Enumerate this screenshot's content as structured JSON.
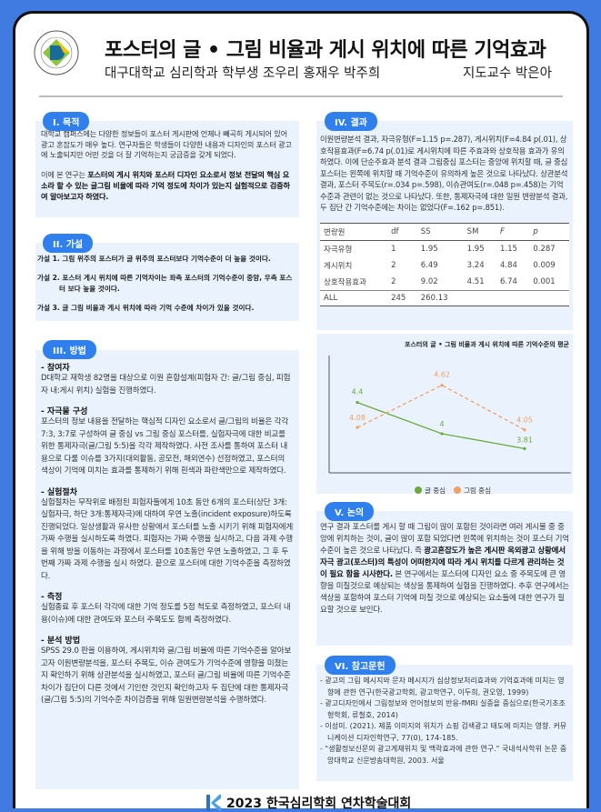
{
  "header": {
    "title": "포스터의 글 • 그림 비율과 게시 위치에 따른 기억효과",
    "authors": "대구대학교 심리학과 학부생 조우리 홍재우 박주희",
    "advisor": "지도교수 박은아",
    "logo_text": "DAEGU UNIVERSITY 1956 대구대학교"
  },
  "purpose": {
    "label": "I. 목적",
    "p1": "대학교 캠퍼스에는 다양한 정보들이 포스터 게시판에 언제나 빼곡히 게시되어 있어 광고 혼잡도가 매우 높다. 연구자들은 학생들이 다양한 내용과 디자인의 포스터 광고에 노출되지만 어떤 것을 더 잘 기억하는지 궁금증을 갖게 되었다.",
    "p2_pre": "이에 본 연구는 ",
    "p2_bold": "포스터의 게시 위치와 포스터 디자인 요소로서 정보 전달의 핵심 요소라 할 수 있는 글그림 비율에 따라 기억 정도에 차이가 있는지 실험적으로 검증하여 알아보고자 하였다."
  },
  "hypothesis": {
    "label": "II. 가설",
    "items": [
      "가설 1. 그림 위주의 포스터가 글 위주의 포스터보다 기억수준이 더 높을 것이다.",
      "가설 2. 포스터 게시 위치에 따른 기억차이는 좌측 포스터의 기억수준이 중앙, 우측 포스터 보다 높을 것이다.",
      "가설 3. 글 그림 비율과 게시 위치에 따라 기억 수준에 차이가 있을 것이다."
    ]
  },
  "method": {
    "label": "III. 방법",
    "sections": [
      {
        "title": "- 참여자",
        "text": "D대학교 재학생 82명을 대상으로 이원 혼합설계(피험자 간: 글/그림 중심, 피험자 내:게시 위치) 실험을 진행하였다."
      },
      {
        "title": "- 자극물 구성",
        "text": "포스터의 정보 내용을 전달하는 핵심적 디자인 요소로서 글/그림의 비율은 각각 7:3, 3:7로 구성하여 글 중심 vs 그림 중심 포스터를, 실험자극에 대한 비교를 위한 통제자극(글/그림 5:5)을 각각 제작하였다. 사전 조사를 통하여 포스터 내용으로 다룰 이슈를 3가지(대외활동, 공모전, 해외연수) 선정하였고, 포스터의 색상이 기억에 미치는 효과를 통제하기 위해 흰색과 파란색만으로 제작하였다."
      },
      {
        "title": "- 실험절차",
        "text": "실험절차는 무작위로 배정된 피험자들에게 10초 동안 6개의 포스터(상단 3개: 실험자극, 하단 3개:통제자극)에 대하여 우연 노출(incident exposure)하도록 진행되었다. 일상생활과 유사한 상황에서 포스터를 노출 시키기 위해 피험자에게 가짜 수행을 실시하도록 하였다. 피험자는 가짜 수행을 실시하고, 다음 과제 수행을 위해 방을 이동하는 과정에서 포스터를 10초동안 우연 노출하였고, 그 후 두 번째 가짜 과제 수행을 실시 하였다. 끝으로 포스터에 대한 기억수준을 측정하였다."
      },
      {
        "title": "- 측정",
        "text": "실험종료 후 포스터 각각에 대한 기억 정도를 5점 척도로 측정하였고, 포스터 내용(이슈)에 대한 관여도와 포스터 주목도도 함께 측정하였다."
      },
      {
        "title": "- 분석 방법",
        "text": "SPSS 29.0 판을 이용하여, 게시위치와 글/그림 비율에 따른 기억수준을 알아보고자 이원변량분석을, 포스터 주목도, 이슈 관여도가 기억수준에 영향을 미쳤는지 확인하기 위해 상관분석을 실시하였고, 포스터 글/그림 비율에 따른 기억수준 차이가 집단이 다른 것에서 기인한 것인지 확인하고자 두 집단에 대한 통제자극(글/그림 5:5)의 기억수준 차이검증을 위해 일원변량분석을 수행하였다."
      }
    ]
  },
  "results": {
    "label": "IV. 결과",
    "text": "이원변량분석 결과, 자극유형(F=1.15 p=.287), 게시위치(F=4.84 p(.01), 상호작용효과(F=6.74 p(.01)로 게시위치에 따른 주효과와 상호작용 효과가 유의하였다. 이에 단순주효과 분석 결과 그림중심 포스터는 중앙에 위치할 때, 글 중심 포스터는 왼쪽에 위치할 때 기억수준이 유의하게 높은 것으로 나타났다. 상관분석 결과, 포스터 주목도(r=.034 p=.598), 이슈관여도(r=.048 p=.458)는 기억수준과 관련이 없는 것으로 나타났다. 또한, 통제자극에 대한 일원 변량분석 결과, 두 집단 간 기억수준에는 차이는 없었다(F=.162 p=.851).",
    "table": {
      "headers": [
        "변량원",
        "df",
        "SS",
        "SM",
        "F",
        "p"
      ],
      "rows": [
        [
          "자극유형",
          "1",
          "1.95",
          "1.95",
          "1.15",
          "0.287"
        ],
        [
          "게시위치",
          "2",
          "6.49",
          "3.24",
          "4.84",
          "0.009"
        ],
        [
          "상호작용효과",
          "2",
          "9.02",
          "4.51",
          "6.74",
          "0.001"
        ],
        [
          "ALL",
          "245",
          "260.13",
          "",
          "",
          ""
        ]
      ]
    }
  },
  "chart_data": {
    "type": "line",
    "title": "포스터의 글 • 그림 비율과 게시 위치에 따른 기억수준의 평균",
    "categories": [
      "1",
      "2",
      "3"
    ],
    "ylim": [
      3.5,
      5.0
    ],
    "grid": false,
    "legend": "bottom",
    "series": [
      {
        "name": "글 중심",
        "values": [
          4.4,
          4,
          3.81
        ],
        "color": "#6aab3a",
        "dash": false
      },
      {
        "name": "그림 중심",
        "values": [
          4.08,
          4.62,
          4.05
        ],
        "color": "#f0a060",
        "dash": true
      }
    ]
  },
  "discussion": {
    "label": "V. 논의",
    "pre": "연구 결과 포스터를 게시 할 때 그림이 많이 포함된 것이라면 여러 게시물 중 중앙에 위치하는 것이, 글이 많이 포함 되었다면 왼쪽에 위치하는 것이 포스터 기억 수준이 높은 것으로 나타났다. 즉 ",
    "bold": "광고혼잡도가 높은 게시판 옥외광고 상황에서 자극 광고(포스터)의 특성이 어떠한지에 따라 게시 위치를 다르게 관리하는 것이 필요 함을 시사한다.",
    "post": " 본 연구에서는 포스터에 디자인 요소 중 주목도에 큰 영향을 미칠것으로 예상되는 색상을 통제하여 실험을 진행하였다. 추후 연구에서는 색상을 포함하여 포스터 기억에 미칠 것으로 예상되는 요소들에 대한 연구가 필요할 것으로 보인다."
  },
  "references": {
    "label": "VI. 참고문헌",
    "items": [
      "- 광고의 그림 메시지와 문자 메시지가 심상정보처리효과와 기억효과에 미치는 영향에 관한 연구(한국광고학회, 광고학연구, 이두희, 권오영, 1999)",
      "- 광고디자인에서 그림정보와 언어정보의 반응-fMRI 실증을 중심으로(한국기초조형학회, 류철호, 2014)",
      "- 이성미. (2021). 제품 이미지의 위치가 쇼핑 검색광고 태도에 미치는 영향. 커뮤니케이션 디자인학연구, 77(0), 174-185.",
      "- \"생활정보신문의 광고게재위치 및 맥락효과에 관한 연구.\" 국내석사학위 논문 중앙대학교 신문방송대학원, 2003. 서울"
    ]
  },
  "footer": {
    "text": "2023 한국심리학회 연차학술대회"
  }
}
